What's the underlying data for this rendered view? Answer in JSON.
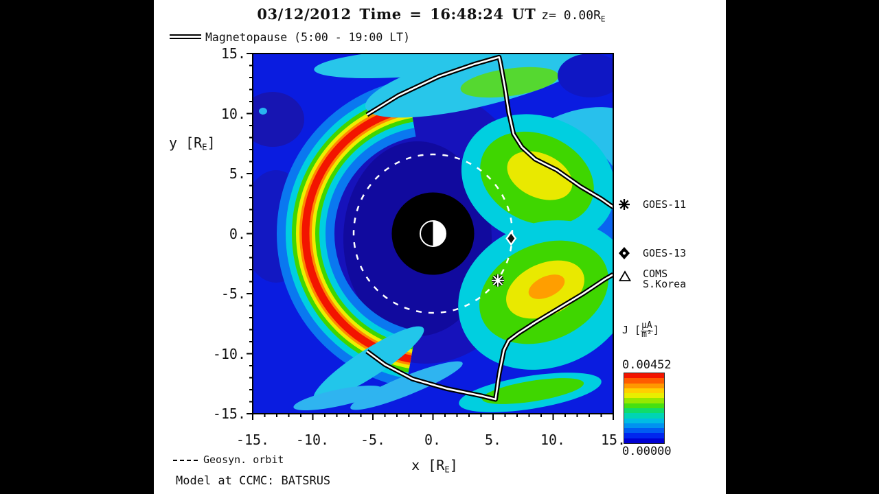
{
  "page": {
    "bg": "#000000",
    "panel_bg": "#ffffff"
  },
  "title": {
    "date_part": "03/12/2012 Time = 16:48:24 UT",
    "z_part": "z= 0.00R",
    "z_sub": "E"
  },
  "legend": {
    "magnetopause_label": "Magnetopause (5:00 - 19:00 LT)"
  },
  "axes": {
    "y": {
      "label_pre": "y [R",
      "label_sub": "E",
      "label_post": "]",
      "ticks": [
        "15.",
        "10.",
        "5.",
        "0.",
        "-5.",
        "-10.",
        "-15."
      ]
    },
    "x": {
      "label_pre": "x [R",
      "label_sub": "E",
      "label_post": "]",
      "ticks": [
        "-15.",
        "-10.",
        "-5.",
        "0.",
        "5.",
        "10.",
        "15."
      ]
    }
  },
  "satellite_legend": [
    {
      "name": "GOES-11",
      "symbol": "asterisk"
    },
    {
      "name": "GOES-13",
      "symbol": "diamond"
    },
    {
      "name": "COMS",
      "name2": "S.Korea",
      "symbol": "triangle"
    }
  ],
  "colorbar": {
    "j_pre": "J [",
    "j_num": "μA",
    "j_den": "m²",
    "j_post": "]",
    "max": "0.00452",
    "min": "0.00000"
  },
  "footer": {
    "geosyn_label": "Geosyn. orbit",
    "model_label": "Model at CCMC: BATSRUS"
  },
  "chart_data": {
    "type": "heatmap",
    "quantity": "current density J",
    "units_label": "J [uA/m2]",
    "title": "03/12/2012 Time = 16:48:24 UT z= 0.00RE",
    "xlabel": "x [RE]",
    "ylabel": "y [RE]",
    "x_range": [
      -15,
      15
    ],
    "y_range": [
      -15,
      15
    ],
    "major_ticks": [
      -15,
      -10,
      -5,
      0,
      5,
      10,
      15
    ],
    "minor_tick_step_re": 1,
    "colorbar_min": 0.0,
    "colorbar_max": 0.00452,
    "colorbar_min_label": "0.00000",
    "colorbar_max_label": "0.00452",
    "colorbar_colors_bottom_to_top": [
      "#0000d2",
      "#0026ee",
      "#005cf2",
      "#0092f0",
      "#00bce4",
      "#00d4b4",
      "#10dc6a",
      "#46e010",
      "#96e800",
      "#e9ee00",
      "#ffd000",
      "#ff9800",
      "#ff5c00",
      "#f21400"
    ],
    "background_color": "#0a1ce0",
    "earth_dayside": "right",
    "inner_boundary_radius_re": 3.43,
    "geosync_orbit_radius_re": 6.6,
    "plot_markers": [
      {
        "name": "GOES-11",
        "marker": "asterisk",
        "x_re": 5.4,
        "y_re": -3.9
      },
      {
        "name": "GOES-13",
        "marker": "diamond",
        "x_re": 6.5,
        "y_re": -0.4
      }
    ],
    "magnetopause_lt_range": "5:00 - 19:00 LT",
    "magnetopause_upper_re": [
      [
        -5.5,
        9.9
      ],
      [
        -2.9,
        11.5
      ],
      [
        0.5,
        13.1
      ],
      [
        3.4,
        14.1
      ],
      [
        5.5,
        14.7
      ],
      [
        5.6,
        14.3
      ],
      [
        6.0,
        12.1
      ],
      [
        6.3,
        10.1
      ],
      [
        6.7,
        8.3
      ],
      [
        7.4,
        7.2
      ],
      [
        8.5,
        6.2
      ],
      [
        10.3,
        5.3
      ],
      [
        12.3,
        3.9
      ],
      [
        14.0,
        2.9
      ],
      [
        15.0,
        2.2
      ]
    ],
    "magnetopause_lower_re": [
      [
        -5.5,
        -9.8
      ],
      [
        -4.0,
        -10.9
      ],
      [
        -1.7,
        -12.1
      ],
      [
        1.1,
        -12.9
      ],
      [
        4.0,
        -13.5
      ],
      [
        5.2,
        -13.8
      ],
      [
        5.5,
        -11.7
      ],
      [
        5.9,
        -9.7
      ],
      [
        6.3,
        -8.9
      ],
      [
        7.1,
        -8.3
      ],
      [
        8.5,
        -7.4
      ],
      [
        10.5,
        -6.2
      ],
      [
        12.5,
        -5.0
      ],
      [
        14.3,
        -3.8
      ],
      [
        15.0,
        -3.4
      ]
    ],
    "bow_current_arc": {
      "center_re": [
        0,
        0
      ],
      "radius_re": 10.6,
      "angle_deg_range": [
        100,
        260
      ],
      "rings": [
        {
          "color": "#0a78f0",
          "width": 84
        },
        {
          "color": "#00cfe0",
          "width": 58
        },
        {
          "color": "#3fd600",
          "width": 40
        },
        {
          "color": "#eeee00",
          "width": 28
        },
        {
          "color": "#ff8800",
          "width": 18
        },
        {
          "color": "#f21400",
          "width": 11
        }
      ]
    },
    "field_blobs_pre": [
      {
        "cx": 268,
        "cy": 268,
        "rx": 162,
        "ry": 200,
        "rot": 0,
        "fill": "#1612bb"
      },
      {
        "cx": 256,
        "cy": 286,
        "rx": 108,
        "ry": 142,
        "rot": 0,
        "fill": "#110a9e"
      },
      {
        "cx": 45,
        "cy": 112,
        "rx": 46,
        "ry": 40,
        "rot": 0,
        "fill": "#1715b2"
      },
      {
        "cx": 50,
        "cy": 268,
        "rx": 52,
        "ry": 82,
        "rot": 0,
        "fill": "#1218c2"
      }
    ],
    "field_blobs_post": [
      {
        "cx": 240,
        "cy": 30,
        "rx": 135,
        "ry": 20,
        "rot": -4,
        "fill": "#28c6ea"
      },
      {
        "cx": 350,
        "cy": 52,
        "rx": 175,
        "ry": 40,
        "rot": -14,
        "fill": "#28c6ea"
      },
      {
        "cx": 390,
        "cy": 58,
        "rx": 72,
        "ry": 20,
        "rot": -8,
        "fill": "#55d830"
      },
      {
        "cx": 508,
        "cy": 48,
        "rx": 48,
        "ry": 32,
        "rot": 0,
        "fill": "#0f17c4"
      },
      {
        "cx": 488,
        "cy": 150,
        "rx": 95,
        "ry": 50,
        "rot": -18,
        "fill": "#28c0ec"
      },
      {
        "cx": 492,
        "cy": 300,
        "rx": 80,
        "ry": 150,
        "rot": 0,
        "fill": "#0a64f0"
      },
      {
        "cx": 432,
        "cy": 200,
        "rx": 115,
        "ry": 92,
        "rot": 22,
        "fill": "#00cfe0"
      },
      {
        "cx": 430,
        "cy": 198,
        "rx": 86,
        "ry": 64,
        "rot": 24,
        "fill": "#3fd600"
      },
      {
        "cx": 434,
        "cy": 194,
        "rx": 50,
        "ry": 32,
        "rot": 24,
        "fill": "#e9e900"
      },
      {
        "cx": 442,
        "cy": 368,
        "rx": 130,
        "ry": 105,
        "rot": -22,
        "fill": "#00cfe0"
      },
      {
        "cx": 440,
        "cy": 364,
        "rx": 98,
        "ry": 70,
        "rot": -24,
        "fill": "#3fd600"
      },
      {
        "cx": 442,
        "cy": 360,
        "rx": 60,
        "ry": 38,
        "rot": -24,
        "fill": "#e9e900"
      },
      {
        "cx": 444,
        "cy": 356,
        "rx": 28,
        "ry": 15,
        "rot": -24,
        "fill": "#ff9e00"
      },
      {
        "cx": 420,
        "cy": 510,
        "rx": 105,
        "ry": 24,
        "rot": -9,
        "fill": "#00cfe0"
      },
      {
        "cx": 424,
        "cy": 508,
        "rx": 75,
        "ry": 15,
        "rot": -9,
        "fill": "#3fd600"
      },
      {
        "cx": 185,
        "cy": 468,
        "rx": 95,
        "ry": 20,
        "rot": -33,
        "fill": "#22c6ea"
      },
      {
        "cx": 240,
        "cy": 500,
        "rx": 88,
        "ry": 14,
        "rot": -22,
        "fill": "#2fb4f0"
      },
      {
        "cx": 140,
        "cy": 518,
        "rx": 66,
        "ry": 12,
        "rot": -12,
        "fill": "#2fb4f0"
      },
      {
        "cx": 31,
        "cy": 100,
        "rx": 6,
        "ry": 5,
        "rot": 0,
        "fill": "#28b4f0"
      }
    ]
  }
}
